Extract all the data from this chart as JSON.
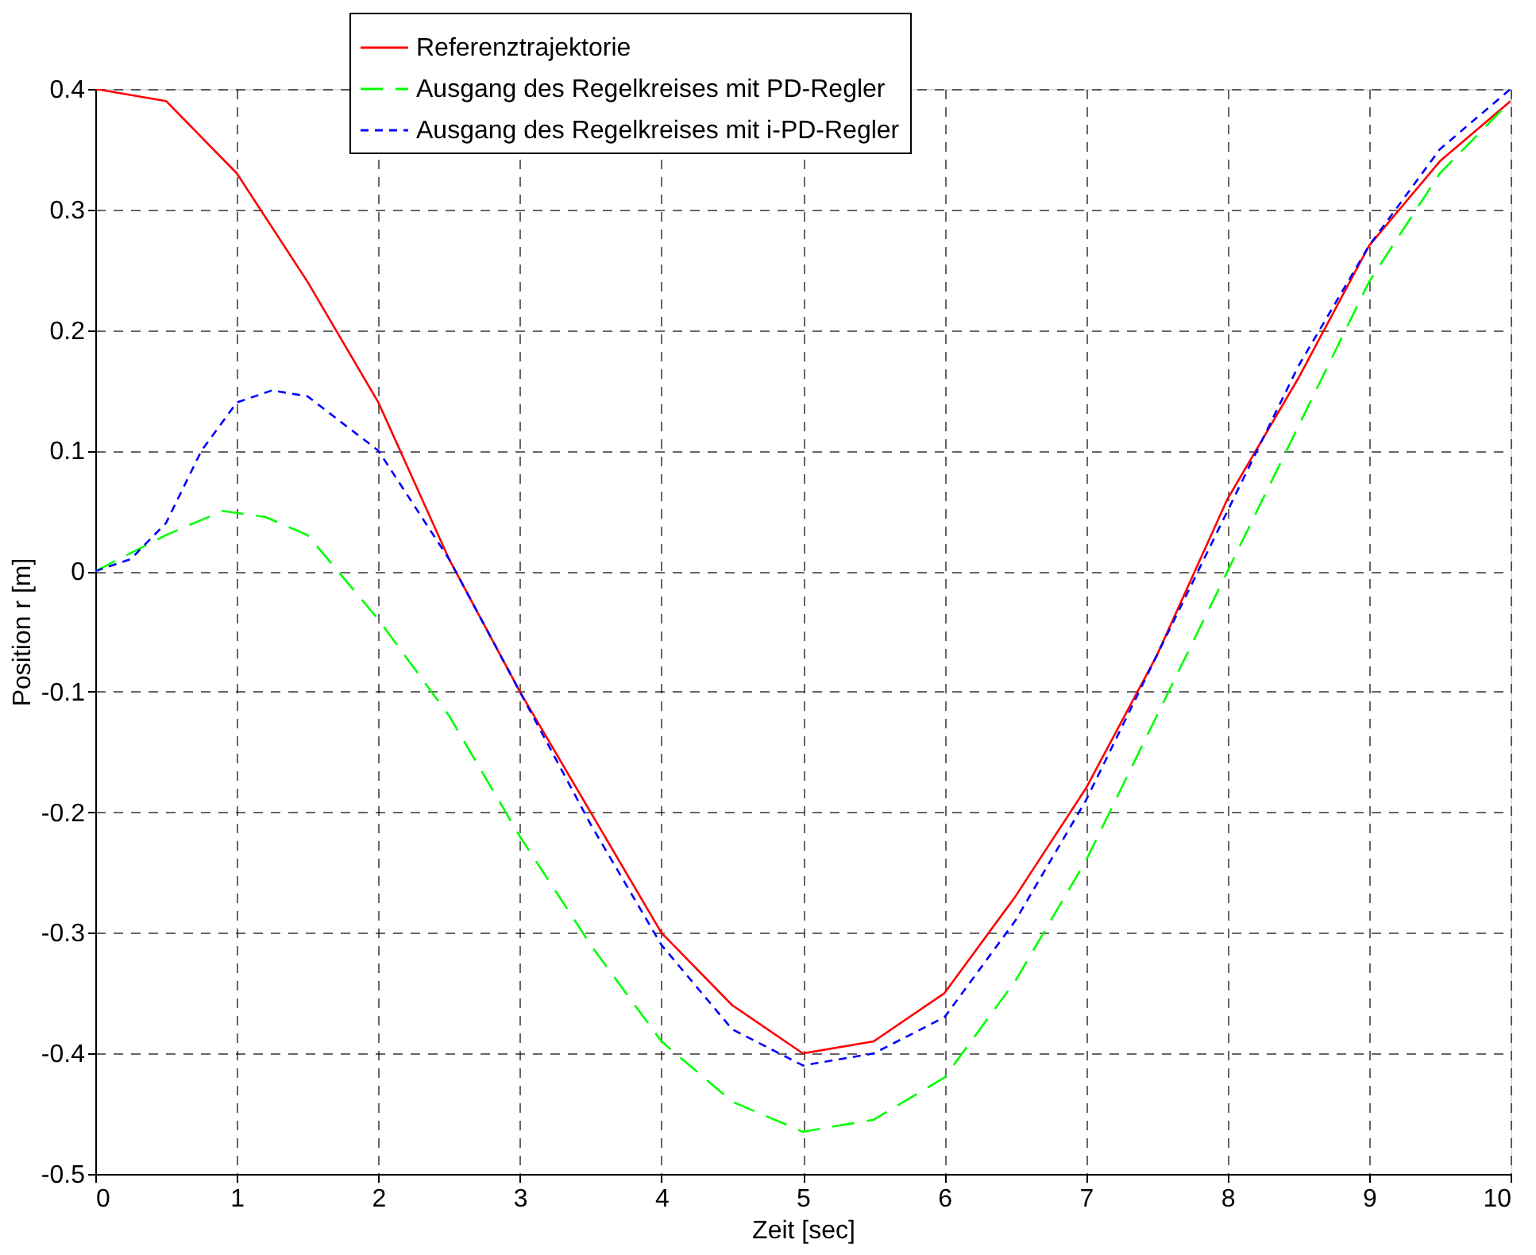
{
  "chart_data": {
    "type": "line",
    "xlabel": "Zeit [sec]",
    "ylabel": "Position r [m]",
    "xlim": [
      0,
      10
    ],
    "ylim": [
      -0.5,
      0.4
    ],
    "xticks": [
      0,
      1,
      2,
      3,
      4,
      5,
      6,
      7,
      8,
      9,
      10
    ],
    "yticks": [
      -0.5,
      -0.4,
      -0.3,
      -0.2,
      -0.1,
      0,
      0.1,
      0.2,
      0.3,
      0.4
    ],
    "grid": true,
    "legend": "top",
    "marker": "none",
    "series": [
      {
        "name": "Referenztrajektorie",
        "color": "#ff0000",
        "line_style": "solid",
        "x": [
          0,
          0.5,
          1,
          1.5,
          2,
          2.5,
          3,
          3.5,
          4,
          4.5,
          5,
          5.5,
          6,
          6.5,
          7,
          7.5,
          8,
          8.5,
          9,
          9.5,
          10
        ],
        "values": [
          0.4,
          0.39,
          0.33,
          0.24,
          0.14,
          0.01,
          -0.1,
          -0.2,
          -0.3,
          -0.36,
          -0.4,
          -0.39,
          -0.35,
          -0.27,
          -0.18,
          -0.07,
          0.06,
          0.16,
          0.27,
          0.34,
          0.39
        ]
      },
      {
        "name": "Ausgang des Regelkreises mit PD-Regler",
        "color": "#00ff00",
        "line_style": "dashed",
        "x": [
          0,
          0.5,
          0.9,
          1.2,
          1.5,
          2,
          2.5,
          3,
          3.5,
          4,
          4.5,
          5,
          5.5,
          6,
          6.5,
          7,
          7.5,
          8,
          8.5,
          9,
          9.5,
          10
        ],
        "values": [
          0,
          0.03,
          0.05,
          0.045,
          0.03,
          -0.04,
          -0.12,
          -0.22,
          -0.31,
          -0.39,
          -0.44,
          -0.465,
          -0.455,
          -0.42,
          -0.34,
          -0.24,
          -0.12,
          0.0,
          0.12,
          0.24,
          0.33,
          0.39
        ]
      },
      {
        "name": "Ausgang des Regelkreises mit i-PD-Regler",
        "color": "#0000ff",
        "line_style": "dotted",
        "x": [
          0,
          0.25,
          0.5,
          0.75,
          1,
          1.25,
          1.5,
          2,
          2.5,
          3,
          3.5,
          4,
          4.5,
          5,
          5.5,
          6,
          6.5,
          7,
          7.5,
          8,
          8.5,
          9,
          9.5,
          10
        ],
        "values": [
          0,
          0.01,
          0.04,
          0.1,
          0.14,
          0.15,
          0.145,
          0.1,
          0.01,
          -0.1,
          -0.21,
          -0.31,
          -0.38,
          -0.41,
          -0.4,
          -0.37,
          -0.29,
          -0.19,
          -0.07,
          0.05,
          0.17,
          0.27,
          0.35,
          0.4
        ]
      }
    ]
  }
}
